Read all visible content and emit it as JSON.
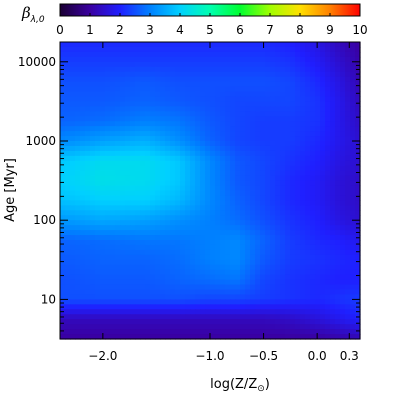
{
  "chart_data": {
    "type": "heatmap",
    "title": "",
    "colorbar": {
      "label_symbol": "β",
      "label_subscript": "λ,0",
      "range": [
        0,
        10
      ],
      "ticks": [
        "0",
        "1",
        "2",
        "3",
        "4",
        "5",
        "6",
        "7",
        "8",
        "9",
        "10"
      ],
      "colormap": [
        "#1a0033",
        "#3a00a0",
        "#1f1fff",
        "#0080ff",
        "#00d0ff",
        "#00ffb0",
        "#00ff30",
        "#a0ff00",
        "#ffe000",
        "#ff8000",
        "#ff0000"
      ]
    },
    "xlabel": "log(Z/Z",
    "xlabel_sub": "⊙",
    "xlabel_close": ")",
    "ylabel": "Age [Myr]",
    "xlim": [
      -2.4,
      0.4
    ],
    "ylim_log10": [
      0.5,
      4.25
    ],
    "x_ticks": [
      {
        "value": -2.0,
        "label": "−2.0"
      },
      {
        "value": -1.0,
        "label": "−1.0"
      },
      {
        "value": -0.5,
        "label": "−0.5"
      },
      {
        "value": 0.0,
        "label": "0.0"
      },
      {
        "value": 0.3,
        "label": "0.3"
      }
    ],
    "y_ticks": [
      {
        "value": 10,
        "label": "10"
      },
      {
        "value": 100,
        "label": "100"
      },
      {
        "value": 1000,
        "label": "1000"
      },
      {
        "value": 10000,
        "label": "10000"
      }
    ],
    "x": [
      -2.4,
      -2.0,
      -1.6,
      -1.3,
      -1.0,
      -0.75,
      -0.5,
      -0.25,
      0.0,
      0.2,
      0.4
    ],
    "y_log10": [
      0.5,
      0.75,
      1.0,
      1.25,
      1.5,
      1.75,
      2.0,
      2.25,
      2.5,
      2.75,
      3.0,
      3.25,
      3.5,
      3.75,
      4.0,
      4.25
    ],
    "z": [
      [
        1.0,
        1.0,
        1.0,
        1.0,
        1.0,
        1.0,
        1.0,
        1.0,
        1.0,
        1.1,
        1.2
      ],
      [
        1.3,
        1.3,
        1.3,
        1.3,
        1.3,
        1.3,
        1.3,
        1.4,
        1.6,
        1.8,
        2.0
      ],
      [
        2.5,
        2.5,
        2.5,
        2.5,
        2.4,
        2.4,
        2.3,
        2.2,
        2.1,
        2.2,
        2.3
      ],
      [
        2.5,
        2.6,
        2.6,
        2.7,
        2.8,
        2.9,
        2.4,
        2.2,
        2.1,
        2.0,
        2.0
      ],
      [
        2.6,
        2.7,
        2.7,
        2.8,
        3.0,
        3.1,
        2.6,
        2.3,
        2.2,
        2.1,
        2.0
      ],
      [
        2.7,
        2.8,
        2.9,
        2.9,
        3.0,
        3.1,
        2.7,
        2.3,
        2.1,
        2.0,
        1.8
      ],
      [
        3.3,
        3.5,
        3.4,
        3.2,
        3.0,
        2.8,
        2.5,
        2.2,
        2.0,
        1.7,
        1.5
      ],
      [
        3.8,
        4.0,
        4.0,
        3.7,
        3.1,
        2.7,
        2.4,
        2.1,
        1.9,
        1.6,
        1.4
      ],
      [
        4.0,
        4.3,
        4.2,
        3.9,
        3.1,
        2.6,
        2.4,
        2.1,
        1.9,
        1.6,
        1.4
      ],
      [
        3.9,
        4.2,
        4.2,
        3.9,
        3.1,
        2.6,
        2.4,
        2.2,
        2.0,
        1.7,
        1.5
      ],
      [
        3.1,
        3.4,
        3.6,
        3.2,
        2.7,
        2.4,
        2.3,
        2.3,
        2.1,
        1.8,
        1.5
      ],
      [
        2.7,
        2.8,
        3.0,
        2.9,
        2.6,
        2.4,
        2.3,
        2.3,
        2.2,
        1.8,
        1.4
      ],
      [
        2.6,
        2.6,
        2.7,
        2.6,
        2.5,
        2.4,
        2.4,
        2.4,
        2.2,
        1.8,
        1.3
      ],
      [
        2.5,
        2.5,
        2.6,
        2.5,
        2.5,
        2.5,
        2.5,
        2.4,
        2.1,
        1.7,
        1.2
      ],
      [
        2.3,
        2.3,
        2.3,
        2.3,
        2.3,
        2.3,
        2.3,
        2.2,
        1.9,
        1.5,
        1.1
      ],
      [
        2.1,
        2.1,
        2.1,
        2.1,
        2.1,
        2.1,
        2.1,
        2.0,
        1.7,
        1.3,
        1.0
      ]
    ]
  }
}
